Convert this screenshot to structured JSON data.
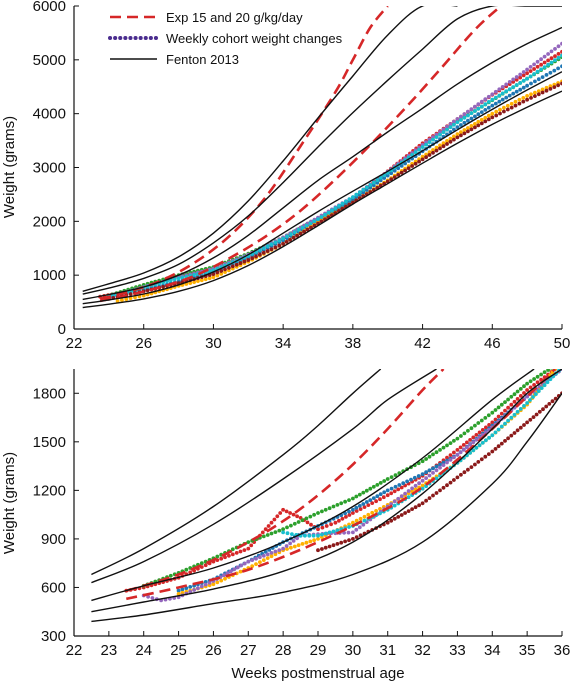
{
  "figure": {
    "legend": {
      "entries": [
        {
          "label": "Exp 15 and 20 g/kg/day",
          "style": "dashed",
          "color": "#d62728"
        },
        {
          "label": "Weekly cohort weight changes",
          "style": "dotted",
          "color": "#4b2d8f"
        },
        {
          "label": "Fenton 2013",
          "style": "solid",
          "color": "#111111"
        }
      ]
    },
    "shared_xlabel": "Weeks postmenstrual age"
  },
  "colors": {
    "fenton": "#111111",
    "exp": "#d62728",
    "cohorts": [
      "#d62728",
      "#2ca02c",
      "#1f77b4",
      "#ffb000",
      "#9467bd",
      "#17becf",
      "#8b1a1a",
      "#e377c2",
      "#ff7f0e",
      "#0b3d91"
    ]
  },
  "chart_data": [
    {
      "type": "line",
      "title": "",
      "xlabel": "",
      "ylabel": "Weight (grams)",
      "xlim": [
        22,
        50
      ],
      "ylim": [
        0,
        6000
      ],
      "xticks": [
        22,
        26,
        30,
        34,
        38,
        42,
        46,
        50
      ],
      "yticks": [
        0,
        1000,
        2000,
        3000,
        4000,
        5000,
        6000
      ],
      "grid": false,
      "legend_position": "top-left",
      "series": [
        {
          "group": "Fenton 2013",
          "kind": "fenton",
          "x": [
            22.5,
            24,
            26,
            28,
            30,
            32,
            34,
            36,
            38,
            40,
            42,
            44,
            46,
            48,
            50
          ],
          "y": [
            400,
            460,
            560,
            700,
            900,
            1180,
            1530,
            1920,
            2320,
            2700,
            3080,
            3450,
            3800,
            4120,
            4420
          ]
        },
        {
          "group": "Fenton 2013",
          "kind": "fenton",
          "x": [
            22.5,
            24,
            26,
            28,
            30,
            32,
            34,
            36,
            38,
            40,
            42,
            44,
            46,
            48,
            50
          ],
          "y": [
            470,
            540,
            650,
            820,
            1060,
            1380,
            1780,
            2180,
            2560,
            2930,
            3310,
            3700,
            4080,
            4440,
            4780
          ]
        },
        {
          "group": "Fenton 2013",
          "kind": "fenton",
          "x": [
            22.5,
            24,
            26,
            28,
            30,
            32,
            34,
            36,
            38,
            40,
            42,
            44,
            46,
            48,
            50
          ],
          "y": [
            550,
            640,
            780,
            1000,
            1320,
            1740,
            2250,
            2760,
            3200,
            3660,
            4100,
            4550,
            4950,
            5300,
            5600
          ]
        },
        {
          "group": "Fenton 2013",
          "kind": "fenton",
          "x": [
            22.5,
            24,
            26,
            28,
            30,
            32,
            34,
            36,
            38,
            40,
            42,
            44,
            46,
            48,
            50
          ],
          "y": [
            650,
            760,
            940,
            1200,
            1600,
            2100,
            2720,
            3380,
            4020,
            4620,
            5200,
            5760,
            6000,
            6000,
            6000
          ]
        },
        {
          "group": "Fenton 2013",
          "kind": "fenton",
          "x": [
            22.5,
            24,
            26,
            28,
            30,
            32,
            34,
            36,
            38,
            40,
            42,
            44
          ],
          "y": [
            700,
            840,
            1040,
            1340,
            1780,
            2380,
            3120,
            3920,
            4700,
            5460,
            6000,
            6000
          ]
        },
        {
          "group": "Exp 15 and 20 g/kg/day",
          "kind": "exp",
          "x": [
            23.5,
            25,
            27,
            29,
            31,
            33,
            35,
            37,
            38,
            39,
            40
          ],
          "y": [
            560,
            680,
            900,
            1250,
            1750,
            2450,
            3400,
            4400,
            5000,
            5600,
            6000
          ]
        },
        {
          "group": "Exp 15 and 20 g/kg/day",
          "kind": "exp",
          "x": [
            23.5,
            25,
            27,
            29,
            31,
            33,
            35,
            37,
            39,
            41,
            43,
            45,
            46.5
          ],
          "y": [
            520,
            620,
            780,
            1000,
            1330,
            1720,
            2200,
            2780,
            3420,
            4100,
            4820,
            5560,
            6000
          ]
        },
        {
          "group": "Weekly cohort weight changes",
          "kind": "cohort",
          "x": [
            23.5,
            26,
            28,
            30,
            32,
            34,
            36,
            37,
            38,
            40,
            42,
            44,
            46,
            48,
            50
          ],
          "y": [
            600,
            760,
            980,
            1100,
            1320,
            1650,
            2000,
            2150,
            2400,
            2930,
            3450,
            3900,
            4350,
            4750,
            5150
          ]
        },
        {
          "group": "Weekly cohort weight changes",
          "kind": "cohort",
          "x": [
            24,
            26,
            28,
            30,
            32,
            34,
            36,
            38,
            40,
            42,
            44,
            46,
            48,
            50
          ],
          "y": [
            620,
            820,
            1000,
            1150,
            1400,
            1700,
            2050,
            2420,
            2900,
            3380,
            3850,
            4250,
            4650,
            5050
          ]
        },
        {
          "group": "Weekly cohort weight changes",
          "kind": "cohort",
          "x": [
            24,
            26,
            28,
            30,
            32,
            34,
            36,
            38,
            40,
            42,
            44,
            46,
            48,
            50
          ],
          "y": [
            580,
            720,
            880,
            1060,
            1340,
            1650,
            2000,
            2400,
            2850,
            3300,
            3750,
            4150,
            4520,
            4880
          ]
        },
        {
          "group": "Weekly cohort weight changes",
          "kind": "cohort",
          "x": [
            24.5,
            26,
            28,
            30,
            32,
            34,
            36,
            38,
            40,
            42,
            44,
            46,
            48,
            50
          ],
          "y": [
            520,
            620,
            800,
            960,
            1250,
            1580,
            1980,
            2350,
            2760,
            3200,
            3620,
            4000,
            4330,
            4600
          ]
        },
        {
          "group": "Weekly cohort weight changes",
          "kind": "cohort",
          "x": [
            24,
            26,
            28,
            30,
            32,
            34,
            36,
            38,
            40,
            42,
            44,
            46,
            48,
            50
          ],
          "y": [
            590,
            780,
            960,
            1120,
            1380,
            1700,
            2070,
            2450,
            2920,
            3420,
            3900,
            4360,
            4820,
            5300
          ]
        },
        {
          "group": "Weekly cohort weight changes",
          "kind": "cohort",
          "x": [
            24,
            26,
            28,
            30,
            32,
            34,
            36,
            38,
            40,
            42,
            44,
            46,
            48,
            50
          ],
          "y": [
            600,
            770,
            940,
            1090,
            1360,
            1680,
            2040,
            2450,
            2900,
            3380,
            3840,
            4260,
            4650,
            5080
          ]
        },
        {
          "group": "Weekly cohort weight changes",
          "kind": "cohort",
          "x": [
            24,
            26,
            28,
            30,
            32,
            34,
            36,
            38,
            40,
            42,
            44,
            46,
            48,
            50
          ],
          "y": [
            560,
            700,
            850,
            1020,
            1280,
            1580,
            1960,
            2350,
            2740,
            3150,
            3560,
            3930,
            4260,
            4560
          ]
        }
      ]
    },
    {
      "type": "line",
      "title": "",
      "xlabel": "Weeks postmenstrual age",
      "ylabel": "Weight (grams)",
      "xlim": [
        22,
        36
      ],
      "ylim": [
        300,
        1950
      ],
      "xticks": [
        22,
        23,
        24,
        25,
        26,
        27,
        28,
        29,
        30,
        31,
        32,
        33,
        34,
        35,
        36
      ],
      "yticks": [
        300,
        600,
        900,
        1200,
        1500,
        1800
      ],
      "grid": false,
      "series": [
        {
          "group": "Fenton 2013",
          "kind": "fenton",
          "x": [
            22.5,
            24,
            26,
            28,
            30,
            32,
            34,
            35,
            36
          ],
          "y": [
            390,
            430,
            500,
            570,
            680,
            880,
            1240,
            1500,
            1800
          ]
        },
        {
          "group": "Fenton 2013",
          "kind": "fenton",
          "x": [
            22.5,
            24,
            26,
            28,
            30,
            32,
            34,
            35,
            36
          ],
          "y": [
            450,
            510,
            590,
            700,
            880,
            1180,
            1580,
            1800,
            1950
          ]
        },
        {
          "group": "Fenton 2013",
          "kind": "fenton",
          "x": [
            22.5,
            24,
            26,
            28,
            30,
            32,
            34,
            35.2
          ],
          "y": [
            520,
            610,
            720,
            880,
            1100,
            1400,
            1760,
            1950
          ]
        },
        {
          "group": "Fenton 2013",
          "kind": "fenton",
          "x": [
            22.5,
            24,
            26,
            28,
            30,
            31,
            32.4
          ],
          "y": [
            630,
            760,
            990,
            1270,
            1580,
            1760,
            1950
          ]
        },
        {
          "group": "Fenton 2013",
          "kind": "fenton",
          "x": [
            22.5,
            24,
            26,
            28,
            29,
            30,
            30.8
          ],
          "y": [
            680,
            840,
            1100,
            1420,
            1600,
            1800,
            1950
          ]
        },
        {
          "group": "Exp 15 and 20 g/kg/day",
          "kind": "exp",
          "x": [
            23.5,
            24,
            25,
            26,
            27,
            28,
            29,
            30,
            31,
            32,
            32.6
          ],
          "y": [
            580,
            610,
            680,
            770,
            880,
            1010,
            1170,
            1360,
            1580,
            1820,
            1950
          ]
        },
        {
          "group": "Exp 15 and 20 g/kg/day",
          "kind": "exp",
          "x": [
            23.5,
            25,
            27,
            29,
            31,
            32,
            33,
            34,
            35,
            35.8
          ],
          "y": [
            530,
            600,
            710,
            880,
            1090,
            1220,
            1390,
            1580,
            1780,
            1950
          ]
        },
        {
          "group": "Weekly cohort weight changes",
          "kind": "cohort",
          "x": [
            23.5,
            24,
            25,
            26,
            27,
            27.5,
            28,
            28.5,
            29,
            29.5,
            30,
            31,
            32,
            33,
            34,
            35,
            36
          ],
          "y": [
            580,
            600,
            660,
            760,
            840,
            960,
            1080,
            1030,
            960,
            1000,
            1060,
            1170,
            1290,
            1450,
            1620,
            1820,
            1980
          ]
        },
        {
          "group": "Weekly cohort weight changes",
          "kind": "cohort",
          "x": [
            24,
            25,
            26,
            27,
            28,
            29,
            30,
            31,
            32,
            33,
            34,
            35,
            36
          ],
          "y": [
            610,
            690,
            780,
            880,
            960,
            1060,
            1150,
            1270,
            1380,
            1520,
            1680,
            1860,
            2000
          ]
        },
        {
          "group": "Weekly cohort weight changes",
          "kind": "cohort",
          "x": [
            25,
            26,
            27,
            28,
            29,
            30,
            31,
            32,
            33,
            34,
            35,
            36
          ],
          "y": [
            580,
            650,
            760,
            880,
            980,
            1080,
            1200,
            1300,
            1420,
            1600,
            1780,
            1950
          ]
        },
        {
          "group": "Weekly cohort weight changes",
          "kind": "cohort",
          "x": [
            25,
            26,
            27,
            28,
            29,
            30,
            31,
            32,
            33,
            34,
            35,
            35.8
          ],
          "y": [
            560,
            620,
            720,
            830,
            900,
            1000,
            1110,
            1230,
            1370,
            1540,
            1730,
            1950
          ]
        },
        {
          "group": "Weekly cohort weight changes",
          "kind": "cohort",
          "x": [
            24,
            24.5,
            25,
            26,
            27,
            28,
            28.5,
            29,
            30,
            31,
            32,
            33,
            34,
            35,
            36
          ],
          "y": [
            550,
            520,
            540,
            640,
            760,
            840,
            920,
            930,
            940,
            1100,
            1260,
            1420,
            1590,
            1780,
            1950
          ]
        },
        {
          "group": "Weekly cohort weight changes",
          "kind": "cohort",
          "x": [
            28,
            28.5,
            29,
            30,
            31,
            32,
            33,
            34,
            35,
            36
          ],
          "y": [
            940,
            920,
            920,
            980,
            1080,
            1210,
            1370,
            1540,
            1740,
            1960
          ]
        },
        {
          "group": "Weekly cohort weight changes",
          "kind": "cohort",
          "x": [
            29,
            30,
            31,
            32,
            33,
            34,
            35,
            36
          ],
          "y": [
            830,
            900,
            1000,
            1120,
            1280,
            1440,
            1620,
            1800
          ]
        }
      ]
    }
  ]
}
